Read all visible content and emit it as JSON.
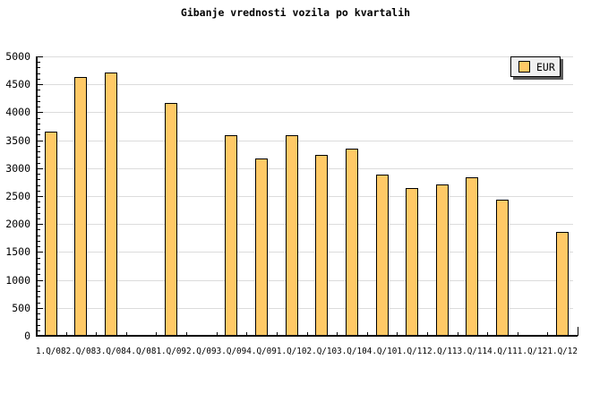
{
  "chart_data": {
    "type": "bar",
    "title": "Gibanje vrednosti vozila po kvartalih",
    "legend": {
      "label": "EUR",
      "position": "top-right"
    },
    "categories": [
      "1.Q/08",
      "2.Q/08",
      "3.Q/08",
      "4.Q/08",
      "1.Q/09",
      "2.Q/09",
      "3.Q/09",
      "4.Q/09",
      "1.Q/10",
      "2.Q/10",
      "3.Q/10",
      "4.Q/10",
      "1.Q/11",
      "2.Q/11",
      "3.Q/11",
      "4.Q/11",
      "1.Q/12",
      "1.Q/12"
    ],
    "series": [
      {
        "name": "EUR",
        "values": [
          3630,
          4610,
          4690,
          0,
          4150,
          0,
          3570,
          3160,
          3570,
          3220,
          3340,
          2870,
          2630,
          2700,
          2820,
          2420,
          0,
          1840
        ]
      }
    ],
    "xlabel": "",
    "ylabel": "",
    "ylim": [
      0,
      5000
    ],
    "ytick_major": 500,
    "ytick_minor": 100,
    "ytick_labels": [
      "0",
      "500",
      "1000",
      "1500",
      "2000",
      "2500",
      "3000",
      "3500",
      "4000",
      "4500",
      "5000"
    ],
    "grid": "horizontal-only",
    "colors": {
      "bar_fill": "#FFC966",
      "bar_border": "#000000",
      "grid": "#DCDCDC",
      "axis": "#000000",
      "background": "#FFFFFF",
      "text": "#000000",
      "legend_bg": "#F0F0F0",
      "legend_shadow": "#5A5A5A"
    }
  }
}
